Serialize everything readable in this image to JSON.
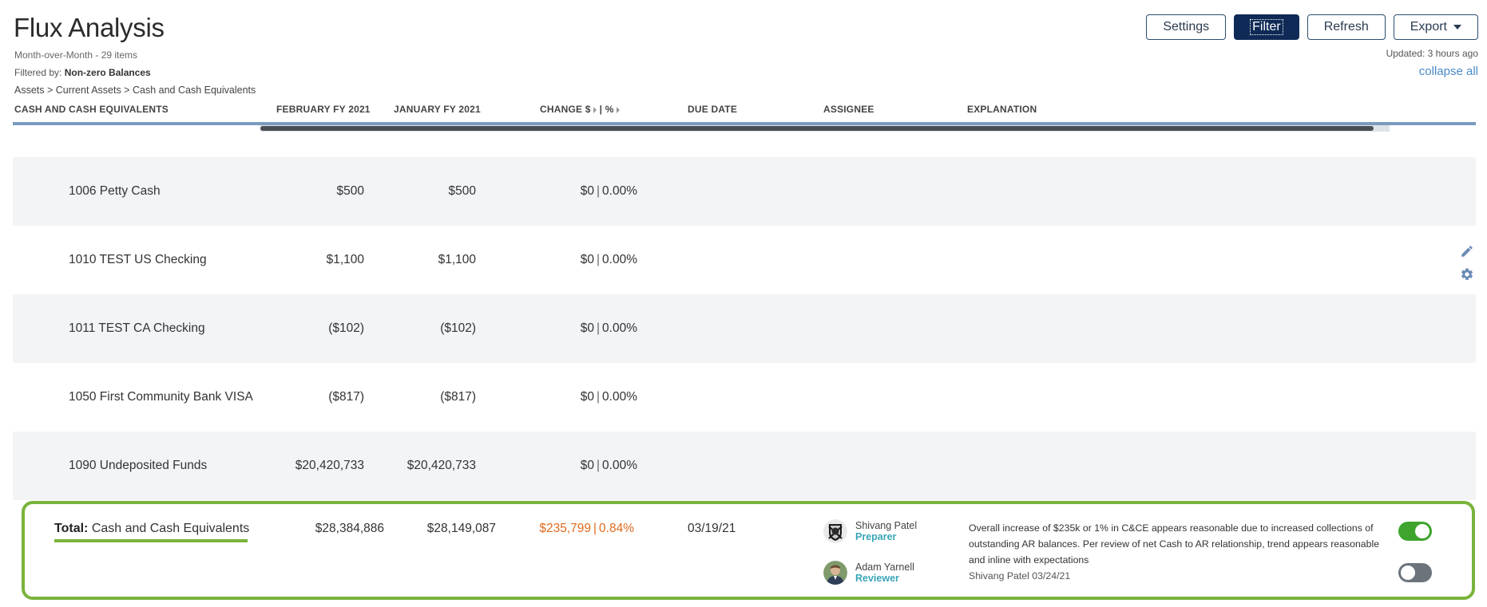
{
  "page": {
    "title": "Flux Analysis",
    "subtitle": "Month-over-Month - 29 items",
    "filter_prefix": "Filtered by:",
    "filter_value": "Non-zero Balances",
    "breadcrumb": "Assets > Current Assets > Cash and Cash Equivalents"
  },
  "toolbar": {
    "settings_label": "Settings",
    "filter_label": "Filter",
    "refresh_label": "Refresh",
    "export_label": "Export",
    "updated": "Updated: 3 hours ago",
    "collapse_all": "collapse all"
  },
  "table": {
    "columns": {
      "account": "CASH AND CASH EQUIVALENTS",
      "feb": "FEBRUARY FY 2021",
      "jan": "JANUARY FY 2021",
      "change_dollar": "CHANGE $",
      "change_sep": "|",
      "change_pct": "%",
      "due": "DUE DATE",
      "assignee": "ASSIGNEE",
      "explanation": "EXPLANATION"
    },
    "rows": [
      {
        "name": "1006 Petty Cash",
        "feb": "$500",
        "jan": "$500",
        "chg": "$0",
        "pct": "0.00%"
      },
      {
        "name": "1010 TEST US Checking",
        "feb": "$1,100",
        "jan": "$1,100",
        "chg": "$0",
        "pct": "0.00%"
      },
      {
        "name": "1011 TEST CA Checking",
        "feb": "($102)",
        "jan": "($102)",
        "chg": "$0",
        "pct": "0.00%"
      },
      {
        "name": "1050 First Community Bank VISA",
        "feb": "($817)",
        "jan": "($817)",
        "chg": "$0",
        "pct": "0.00%"
      },
      {
        "name": "1090 Undeposited Funds",
        "feb": "$20,420,733",
        "jan": "$20,420,733",
        "chg": "$0",
        "pct": "0.00%"
      }
    ],
    "total": {
      "prefix": "Total:",
      "name": "Cash and Cash Equivalents",
      "feb": "$28,384,886",
      "jan": "$28,149,087",
      "chg": "$235,799",
      "pct": "0.84%",
      "due": "03/19/21",
      "preparer_name": "Shivang Patel",
      "preparer_role": "Preparer",
      "reviewer_name": "Adam Yarnell",
      "reviewer_role": "Reviewer",
      "explanation": "Overall increase of $235k or 1% in C&CE appears reasonable due to increased collections of outstanding AR balances. Per review of net Cash to AR relationship, trend appears reasonable and inline with expectations",
      "explanation_by": "Shivang Patel 03/24/21",
      "preparer_signoff": true,
      "reviewer_signoff": false
    }
  },
  "colors": {
    "accent_green": "#7ab33b",
    "change_orange": "#e06a1c",
    "role_teal": "#3aa6b8",
    "primary_navy": "#0f2a56"
  },
  "icons": {
    "row_actions": [
      "pencil-icon",
      "gear-icon"
    ],
    "preparer_avatar": "raiders-logo-avatar",
    "reviewer_avatar": "photo-avatar"
  }
}
